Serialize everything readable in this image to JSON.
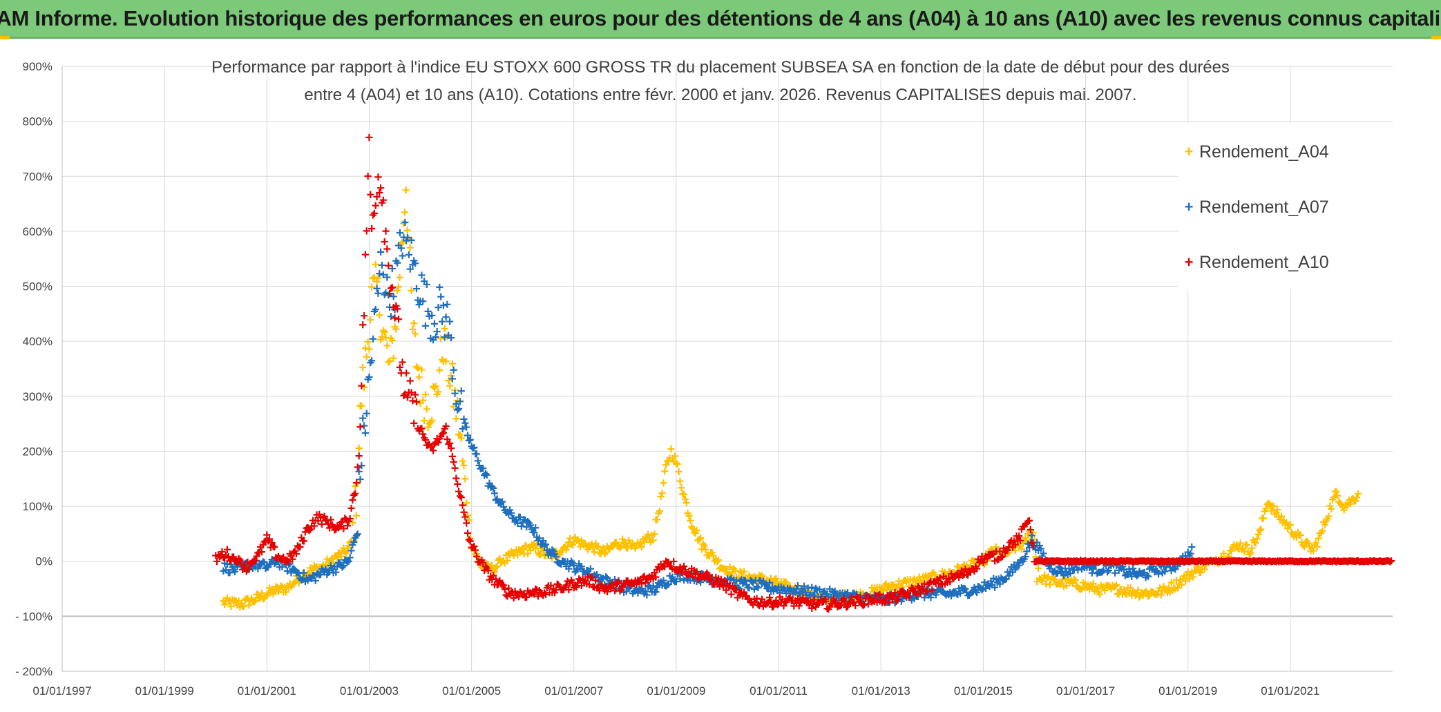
{
  "header": {
    "banner_text": "ADAM Informe. Evolution historique des performances en euros pour des détentions de 4 ans (A04) à 10 ans (A10) avec les revenus connus capitalisés"
  },
  "colors": {
    "banner_bg": "#7cc97a",
    "series_A04": "#ffc000",
    "series_A07": "#1f6fbf",
    "series_A10": "#e60000",
    "grid": "#d9d9d9"
  },
  "chart_data": {
    "type": "scatter",
    "title_line1": "Performance  par rapport à l'indice EU STOXX 600 GROSS TR  du placement SUBSEA SA en fonction de la date de début pour des durées",
    "title_line2": "entre 4 (A04) et 10 ans (A10). Cotations entre févr. 2000 et janv. 2026. Revenus CAPITALISES depuis mai. 2007.",
    "xlabel": "",
    "ylabel": "",
    "x_axis": {
      "range": [
        1997.0,
        2023.0
      ],
      "tick_labels": [
        "01/01/1997",
        "01/01/1999",
        "01/01/2001",
        "01/01/2003",
        "01/01/2005",
        "01/01/2007",
        "01/01/2009",
        "01/01/2011",
        "01/01/2013",
        "01/01/2015",
        "01/01/2017",
        "01/01/2019",
        "01/01/2021"
      ],
      "tick_values": [
        1997,
        1999,
        2001,
        2003,
        2005,
        2007,
        2009,
        2011,
        2013,
        2015,
        2017,
        2019,
        2021
      ]
    },
    "y_axis": {
      "range": [
        -200,
        900
      ],
      "tick_values": [
        -200,
        -100,
        0,
        100,
        200,
        300,
        400,
        500,
        600,
        700,
        800,
        900
      ],
      "tick_labels": [
        "- 200%",
        "- 100%",
        "0%",
        "100%",
        "200%",
        "300%",
        "400%",
        "500%",
        "600%",
        "700%",
        "800%",
        "900%"
      ]
    },
    "grid": true,
    "legend_position": "top-right",
    "marker": "+",
    "series": [
      {
        "name": "Rendement_A04",
        "color": "#ffc000",
        "points": [
          [
            2000.15,
            -75
          ],
          [
            2000.5,
            -78
          ],
          [
            2000.8,
            -68
          ],
          [
            2001.1,
            -55
          ],
          [
            2001.4,
            -48
          ],
          [
            2001.7,
            -25
          ],
          [
            2001.9,
            -15
          ],
          [
            2002.1,
            -10
          ],
          [
            2002.3,
            5
          ],
          [
            2002.5,
            15
          ],
          [
            2002.65,
            30
          ],
          [
            2002.75,
            120
          ],
          [
            2002.85,
            300
          ],
          [
            2002.95,
            380
          ],
          [
            2003.05,
            480
          ],
          [
            2003.15,
            500
          ],
          [
            2003.25,
            430
          ],
          [
            2003.4,
            350
          ],
          [
            2003.5,
            420
          ],
          [
            2003.62,
            560
          ],
          [
            2003.72,
            690
          ],
          [
            2003.85,
            420
          ],
          [
            2004.0,
            320
          ],
          [
            2004.15,
            280
          ],
          [
            2004.3,
            300
          ],
          [
            2004.45,
            400
          ],
          [
            2004.6,
            330
          ],
          [
            2004.75,
            250
          ],
          [
            2004.9,
            110
          ],
          [
            2005.0,
            30
          ],
          [
            2005.2,
            -10
          ],
          [
            2005.4,
            -15
          ],
          [
            2005.6,
            0
          ],
          [
            2005.8,
            10
          ],
          [
            2006.0,
            20
          ],
          [
            2006.2,
            25
          ],
          [
            2006.4,
            15
          ],
          [
            2006.6,
            10
          ],
          [
            2006.8,
            25
          ],
          [
            2007.0,
            40
          ],
          [
            2007.2,
            30
          ],
          [
            2007.4,
            25
          ],
          [
            2007.6,
            15
          ],
          [
            2007.8,
            30
          ],
          [
            2008.0,
            35
          ],
          [
            2008.2,
            20
          ],
          [
            2008.4,
            40
          ],
          [
            2008.55,
            45
          ],
          [
            2008.7,
            110
          ],
          [
            2008.8,
            170
          ],
          [
            2008.9,
            200
          ],
          [
            2009.0,
            180
          ],
          [
            2009.15,
            120
          ],
          [
            2009.3,
            70
          ],
          [
            2009.5,
            30
          ],
          [
            2009.7,
            10
          ],
          [
            2009.9,
            -10
          ],
          [
            2010.2,
            -25
          ],
          [
            2010.5,
            -30
          ],
          [
            2010.8,
            -35
          ],
          [
            2011.1,
            -45
          ],
          [
            2011.4,
            -55
          ],
          [
            2011.7,
            -65
          ],
          [
            2012.0,
            -68
          ],
          [
            2012.3,
            -65
          ],
          [
            2012.6,
            -62
          ],
          [
            2012.9,
            -55
          ],
          [
            2013.2,
            -45
          ],
          [
            2013.5,
            -40
          ],
          [
            2013.8,
            -35
          ],
          [
            2014.1,
            -28
          ],
          [
            2014.4,
            -20
          ],
          [
            2014.7,
            -10
          ],
          [
            2015.0,
            0
          ],
          [
            2015.2,
            20
          ],
          [
            2015.4,
            10
          ],
          [
            2015.6,
            25
          ],
          [
            2015.8,
            30
          ],
          [
            2015.95,
            60
          ],
          [
            2016.1,
            -30
          ],
          [
            2016.4,
            -38
          ],
          [
            2016.7,
            -40
          ],
          [
            2017.0,
            -45
          ],
          [
            2017.3,
            -52
          ],
          [
            2017.6,
            -50
          ],
          [
            2017.9,
            -55
          ],
          [
            2018.2,
            -58
          ],
          [
            2018.5,
            -55
          ],
          [
            2018.8,
            -40
          ],
          [
            2019.1,
            -20
          ],
          [
            2019.4,
            -5
          ],
          [
            2019.7,
            10
          ],
          [
            2020.0,
            30
          ],
          [
            2020.2,
            20
          ],
          [
            2020.4,
            50
          ],
          [
            2020.55,
            110
          ],
          [
            2020.7,
            90
          ],
          [
            2020.9,
            70
          ],
          [
            2021.1,
            50
          ],
          [
            2021.3,
            30
          ],
          [
            2021.45,
            20
          ],
          [
            2021.6,
            50
          ],
          [
            2021.75,
            90
          ],
          [
            2021.9,
            125
          ],
          [
            2022.05,
            100
          ],
          [
            2022.2,
            110
          ],
          [
            2022.35,
            125
          ]
        ]
      },
      {
        "name": "Rendement_A07",
        "color": "#1f6fbf",
        "points": [
          [
            2000.15,
            -10
          ],
          [
            2000.4,
            -15
          ],
          [
            2000.7,
            -5
          ],
          [
            2001.0,
            -10
          ],
          [
            2001.2,
            0
          ],
          [
            2001.4,
            -10
          ],
          [
            2001.6,
            -20
          ],
          [
            2001.8,
            -35
          ],
          [
            2002.0,
            -25
          ],
          [
            2002.2,
            -15
          ],
          [
            2002.4,
            -10
          ],
          [
            2002.6,
            0
          ],
          [
            2002.75,
            50
          ],
          [
            2002.85,
            200
          ],
          [
            2002.95,
            280
          ],
          [
            2003.05,
            380
          ],
          [
            2003.15,
            470
          ],
          [
            2003.25,
            560
          ],
          [
            2003.35,
            480
          ],
          [
            2003.5,
            500
          ],
          [
            2003.65,
            590
          ],
          [
            2003.8,
            560
          ],
          [
            2003.95,
            510
          ],
          [
            2004.1,
            470
          ],
          [
            2004.25,
            440
          ],
          [
            2004.4,
            460
          ],
          [
            2004.55,
            430
          ],
          [
            2004.7,
            310
          ],
          [
            2004.85,
            250
          ],
          [
            2005.0,
            210
          ],
          [
            2005.2,
            170
          ],
          [
            2005.4,
            130
          ],
          [
            2005.6,
            100
          ],
          [
            2005.8,
            80
          ],
          [
            2006.0,
            70
          ],
          [
            2006.2,
            60
          ],
          [
            2006.4,
            30
          ],
          [
            2006.6,
            10
          ],
          [
            2006.8,
            0
          ],
          [
            2007.0,
            -10
          ],
          [
            2007.2,
            -15
          ],
          [
            2007.4,
            -25
          ],
          [
            2007.6,
            -35
          ],
          [
            2007.8,
            -40
          ],
          [
            2008.0,
            -50
          ],
          [
            2008.3,
            -55
          ],
          [
            2008.6,
            -50
          ],
          [
            2008.9,
            -30
          ],
          [
            2009.2,
            -25
          ],
          [
            2009.5,
            -30
          ],
          [
            2009.8,
            -35
          ],
          [
            2010.1,
            -40
          ],
          [
            2010.4,
            -42
          ],
          [
            2010.7,
            -45
          ],
          [
            2011.0,
            -50
          ],
          [
            2011.3,
            -52
          ],
          [
            2011.6,
            -55
          ],
          [
            2011.9,
            -58
          ],
          [
            2012.2,
            -62
          ],
          [
            2012.5,
            -65
          ],
          [
            2012.8,
            -68
          ],
          [
            2013.1,
            -70
          ],
          [
            2013.4,
            -65
          ],
          [
            2013.7,
            -60
          ],
          [
            2014.0,
            -58
          ],
          [
            2014.3,
            -60
          ],
          [
            2014.6,
            -55
          ],
          [
            2014.9,
            -50
          ],
          [
            2015.2,
            -40
          ],
          [
            2015.4,
            -30
          ],
          [
            2015.6,
            -15
          ],
          [
            2015.8,
            10
          ],
          [
            2015.95,
            40
          ],
          [
            2016.1,
            20
          ],
          [
            2016.3,
            -10
          ],
          [
            2016.6,
            -20
          ],
          [
            2016.9,
            -5
          ],
          [
            2017.2,
            -15
          ],
          [
            2017.5,
            -10
          ],
          [
            2017.8,
            -20
          ],
          [
            2018.1,
            -25
          ],
          [
            2018.4,
            -15
          ],
          [
            2018.7,
            -10
          ],
          [
            2019.0,
            10
          ],
          [
            2019.1,
            20
          ]
        ]
      },
      {
        "name": "Rendement_A10",
        "color": "#e60000",
        "points": [
          [
            2000.0,
            5
          ],
          [
            2000.2,
            15
          ],
          [
            2000.4,
            0
          ],
          [
            2000.6,
            -10
          ],
          [
            2000.8,
            5
          ],
          [
            2001.0,
            40
          ],
          [
            2001.2,
            10
          ],
          [
            2001.4,
            0
          ],
          [
            2001.6,
            20
          ],
          [
            2001.8,
            60
          ],
          [
            2002.0,
            80
          ],
          [
            2002.2,
            70
          ],
          [
            2002.4,
            60
          ],
          [
            2002.6,
            75
          ],
          [
            2002.75,
            140
          ],
          [
            2002.85,
            320
          ],
          [
            2002.95,
            620
          ],
          [
            2003.0,
            740
          ],
          [
            2003.05,
            600
          ],
          [
            2003.15,
            700
          ],
          [
            2003.25,
            690
          ],
          [
            2003.35,
            560
          ],
          [
            2003.45,
            500
          ],
          [
            2003.55,
            420
          ],
          [
            2003.65,
            340
          ],
          [
            2003.75,
            290
          ],
          [
            2003.85,
            280
          ],
          [
            2003.95,
            250
          ],
          [
            2004.05,
            230
          ],
          [
            2004.2,
            200
          ],
          [
            2004.35,
            220
          ],
          [
            2004.5,
            240
          ],
          [
            2004.65,
            180
          ],
          [
            2004.8,
            110
          ],
          [
            2004.95,
            40
          ],
          [
            2005.1,
            10
          ],
          [
            2005.3,
            -20
          ],
          [
            2005.5,
            -40
          ],
          [
            2005.7,
            -55
          ],
          [
            2005.9,
            -60
          ],
          [
            2006.1,
            -58
          ],
          [
            2006.4,
            -55
          ],
          [
            2006.7,
            -50
          ],
          [
            2007.0,
            -40
          ],
          [
            2007.3,
            -35
          ],
          [
            2007.6,
            -50
          ],
          [
            2007.9,
            -45
          ],
          [
            2008.2,
            -40
          ],
          [
            2008.5,
            -30
          ],
          [
            2008.8,
            0
          ],
          [
            2009.0,
            -10
          ],
          [
            2009.3,
            -20
          ],
          [
            2009.6,
            -30
          ],
          [
            2009.9,
            -40
          ],
          [
            2010.2,
            -60
          ],
          [
            2010.5,
            -72
          ],
          [
            2010.8,
            -75
          ],
          [
            2011.1,
            -72
          ],
          [
            2011.4,
            -75
          ],
          [
            2011.7,
            -78
          ],
          [
            2012.0,
            -78
          ],
          [
            2012.3,
            -75
          ],
          [
            2012.6,
            -72
          ],
          [
            2012.9,
            -68
          ],
          [
            2013.2,
            -68
          ],
          [
            2013.5,
            -60
          ],
          [
            2013.8,
            -50
          ],
          [
            2014.1,
            -40
          ],
          [
            2014.4,
            -30
          ],
          [
            2014.7,
            -20
          ],
          [
            2015.0,
            5
          ],
          [
            2015.3,
            10
          ],
          [
            2015.5,
            30
          ],
          [
            2015.7,
            40
          ],
          [
            2015.9,
            80
          ],
          [
            2016.0,
            0
          ],
          [
            2016.5,
            0
          ],
          [
            2017.0,
            0
          ],
          [
            2017.5,
            0
          ],
          [
            2018.0,
            0
          ],
          [
            2018.5,
            0
          ],
          [
            2019.0,
            0
          ],
          [
            2019.5,
            0
          ],
          [
            2020.0,
            0
          ],
          [
            2020.5,
            0
          ],
          [
            2021.0,
            0
          ],
          [
            2021.5,
            0
          ],
          [
            2022.0,
            0
          ],
          [
            2022.5,
            0
          ],
          [
            2023.0,
            0
          ]
        ]
      }
    ]
  }
}
